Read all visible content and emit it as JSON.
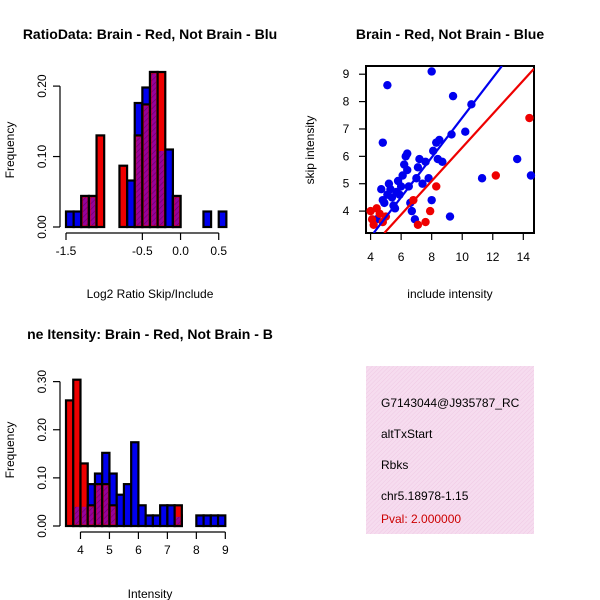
{
  "chart_data": [
    {
      "type": "bar",
      "title": "RatioData: Brain - Red, Not Brain - Blu",
      "xlabel": "Log2 Ratio Skip/Include",
      "ylabel": "Frequency",
      "xlim": [
        -1.5,
        0.7
      ],
      "ylim": [
        0,
        0.22
      ],
      "xticks": [
        "-1.5",
        "-0.5",
        "0.0",
        "0.5"
      ],
      "yticks": [
        "0.00",
        "0.10",
        "0.20"
      ],
      "bin_width": 0.1,
      "series": [
        {
          "name": "Not Brain",
          "color": "#0000ee",
          "bins": [
            [
              -1.45,
              0.022
            ],
            [
              -1.35,
              0.022
            ],
            [
              -1.25,
              0.044
            ],
            [
              -1.15,
              0.044
            ],
            [
              -0.65,
              0.066
            ],
            [
              -0.55,
              0.176
            ],
            [
              -0.45,
              0.198
            ],
            [
              -0.35,
              0.22
            ],
            [
              -0.25,
              0.11
            ],
            [
              -0.15,
              0.11
            ],
            [
              -0.05,
              0.044
            ],
            [
              0.35,
              0.022
            ],
            [
              0.55,
              0.022
            ]
          ]
        },
        {
          "name": "Brain",
          "color": "#ee0000",
          "bins": [
            [
              -1.25,
              0.044
            ],
            [
              -1.15,
              0.044
            ],
            [
              -1.05,
              0.13
            ],
            [
              -0.75,
              0.087
            ],
            [
              -0.55,
              0.13
            ],
            [
              -0.45,
              0.174
            ],
            [
              -0.35,
              0.22
            ],
            [
              -0.25,
              0.22
            ],
            [
              -0.05,
              0.044
            ]
          ]
        }
      ]
    },
    {
      "type": "scatter",
      "title": "Brain - Red, Not Brain - Blue",
      "xlabel": "include intensity",
      "ylabel": "skip intensity",
      "xlim": [
        3.7,
        14.7
      ],
      "ylim": [
        3.2,
        9.3
      ],
      "xticks": [
        "4",
        "6",
        "8",
        "10",
        "12",
        "14"
      ],
      "yticks": [
        "4",
        "5",
        "6",
        "7",
        "8",
        "9"
      ],
      "series": [
        {
          "name": "Not Brain",
          "color": "#0000ee",
          "points": [
            [
              4.4,
              3.7
            ],
            [
              4.8,
              4.4
            ],
            [
              4.7,
              4.8
            ],
            [
              4.9,
              4.3
            ],
            [
              5.1,
              4.6
            ],
            [
              5.2,
              5.0
            ],
            [
              5.3,
              4.8
            ],
            [
              5.4,
              4.5
            ],
            [
              5.5,
              4.2
            ],
            [
              5.6,
              4.1
            ],
            [
              5.7,
              4.7
            ],
            [
              5.8,
              5.1
            ],
            [
              5.9,
              4.6
            ],
            [
              6.0,
              4.9
            ],
            [
              6.1,
              5.3
            ],
            [
              6.2,
              5.7
            ],
            [
              6.3,
              6.0
            ],
            [
              6.4,
              5.5
            ],
            [
              6.5,
              4.9
            ],
            [
              6.6,
              4.3
            ],
            [
              6.7,
              4.0
            ],
            [
              6.9,
              3.7
            ],
            [
              7.0,
              5.2
            ],
            [
              7.1,
              5.6
            ],
            [
              7.2,
              5.9
            ],
            [
              7.4,
              5.0
            ],
            [
              7.6,
              5.8
            ],
            [
              7.8,
              5.2
            ],
            [
              8.0,
              4.4
            ],
            [
              8.1,
              6.2
            ],
            [
              8.3,
              6.5
            ],
            [
              8.4,
              5.9
            ],
            [
              8.5,
              6.6
            ],
            [
              8.7,
              5.8
            ],
            [
              9.3,
              6.8
            ],
            [
              9.4,
              8.2
            ],
            [
              10.2,
              6.9
            ],
            [
              10.6,
              7.9
            ],
            [
              11.3,
              5.2
            ],
            [
              13.6,
              5.9
            ],
            [
              14.5,
              5.3
            ],
            [
              5.1,
              8.6
            ],
            [
              8.0,
              9.1
            ],
            [
              4.8,
              6.5
            ],
            [
              6.4,
              6.1
            ],
            [
              9.2,
              3.8
            ]
          ]
        },
        {
          "name": "Brain",
          "color": "#ee0000",
          "points": [
            [
              4.0,
              4.0
            ],
            [
              4.1,
              3.7
            ],
            [
              4.2,
              3.5
            ],
            [
              4.4,
              4.1
            ],
            [
              4.6,
              3.9
            ],
            [
              4.8,
              3.6
            ],
            [
              5.0,
              3.8
            ],
            [
              6.8,
              4.4
            ],
            [
              7.1,
              3.5
            ],
            [
              7.6,
              3.6
            ],
            [
              7.9,
              4.0
            ],
            [
              8.3,
              4.9
            ],
            [
              12.2,
              5.3
            ],
            [
              14.4,
              7.4
            ]
          ]
        }
      ],
      "fit_lines": [
        {
          "name": "Not Brain fit",
          "color": "#0000ee",
          "from": [
            4.2,
            3.2
          ],
          "to": [
            12.6,
            9.3
          ]
        },
        {
          "name": "Brain fit",
          "color": "#ee0000",
          "from": [
            4.9,
            3.2
          ],
          "to": [
            14.7,
            9.2
          ]
        }
      ]
    },
    {
      "type": "bar",
      "title": "ne Itensity: Brain - Red, Not Brain - B",
      "xlabel": "Intensity",
      "ylabel": "Frequency",
      "xlim": [
        3.5,
        9.3
      ],
      "ylim": [
        0,
        0.32
      ],
      "xticks": [
        "4",
        "5",
        "6",
        "7",
        "8",
        "9"
      ],
      "yticks": [
        "0.00",
        "0.10",
        "0.20",
        "0.30"
      ],
      "bin_width": 0.25,
      "series": [
        {
          "name": "Not Brain",
          "color": "#0000ee",
          "bins": [
            [
              3.625,
              0.0
            ],
            [
              3.875,
              0.043
            ],
            [
              4.125,
              0.043
            ],
            [
              4.375,
              0.087
            ],
            [
              4.625,
              0.109
            ],
            [
              4.875,
              0.152
            ],
            [
              5.125,
              0.109
            ],
            [
              5.375,
              0.065
            ],
            [
              5.625,
              0.087
            ],
            [
              5.875,
              0.174
            ],
            [
              6.125,
              0.043
            ],
            [
              6.375,
              0.022
            ],
            [
              6.625,
              0.022
            ],
            [
              6.875,
              0.043
            ],
            [
              7.125,
              0.043
            ],
            [
              7.375,
              0.022
            ],
            [
              8.125,
              0.022
            ],
            [
              8.375,
              0.022
            ],
            [
              8.625,
              0.022
            ],
            [
              8.875,
              0.022
            ]
          ]
        },
        {
          "name": "Brain",
          "color": "#ee0000",
          "bins": [
            [
              3.625,
              0.261
            ],
            [
              3.875,
              0.304
            ],
            [
              4.125,
              0.13
            ],
            [
              4.375,
              0.043
            ],
            [
              4.625,
              0.087
            ],
            [
              4.875,
              0.087
            ],
            [
              5.125,
              0.043
            ],
            [
              7.375,
              0.043
            ]
          ]
        }
      ]
    }
  ],
  "info_panel": {
    "id": "G7143044@J935787_RC",
    "event_type": "altTxStart",
    "gene": "Rbks",
    "locus": "chr5.18978-1.15",
    "pval": "Pval: 2.000000"
  }
}
